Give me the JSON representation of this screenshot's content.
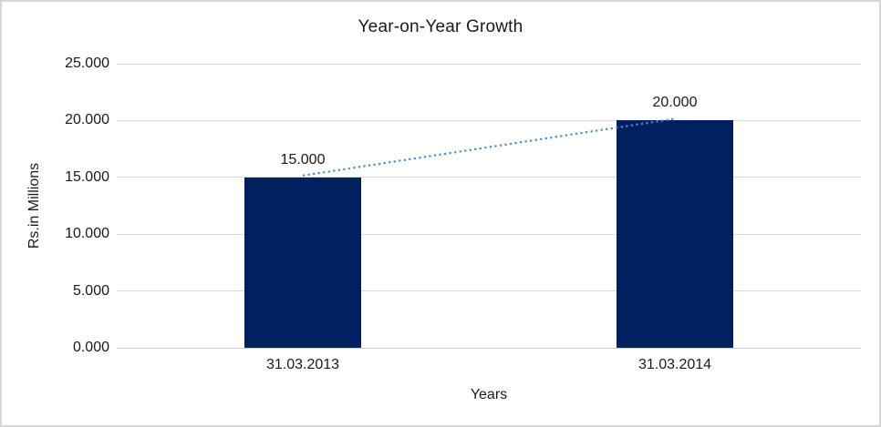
{
  "window": {
    "background_color": "#ffffff",
    "border_color": "#d6d6d6"
  },
  "chart_data": {
    "type": "bar",
    "title": "Year-on-Year Growth",
    "xlabel": "Years",
    "ylabel": "Rs.in Millions",
    "categories": [
      "31.03.2013",
      "31.03.2014"
    ],
    "values": [
      15000,
      20000
    ],
    "data_labels": [
      "15.000",
      "20.000"
    ],
    "ylim": [
      0,
      25000
    ],
    "ytick_step": 5000,
    "ytick_labels": [
      "0.000",
      "5.000",
      "10.000",
      "15.000",
      "20.000",
      "25.000"
    ],
    "grid": "horizontal gridlines on, light gray",
    "legend": "none",
    "bar_color": "#002060",
    "trendline": {
      "style": "dotted",
      "color": "#4a89d4",
      "connects": "bar top centers"
    }
  }
}
